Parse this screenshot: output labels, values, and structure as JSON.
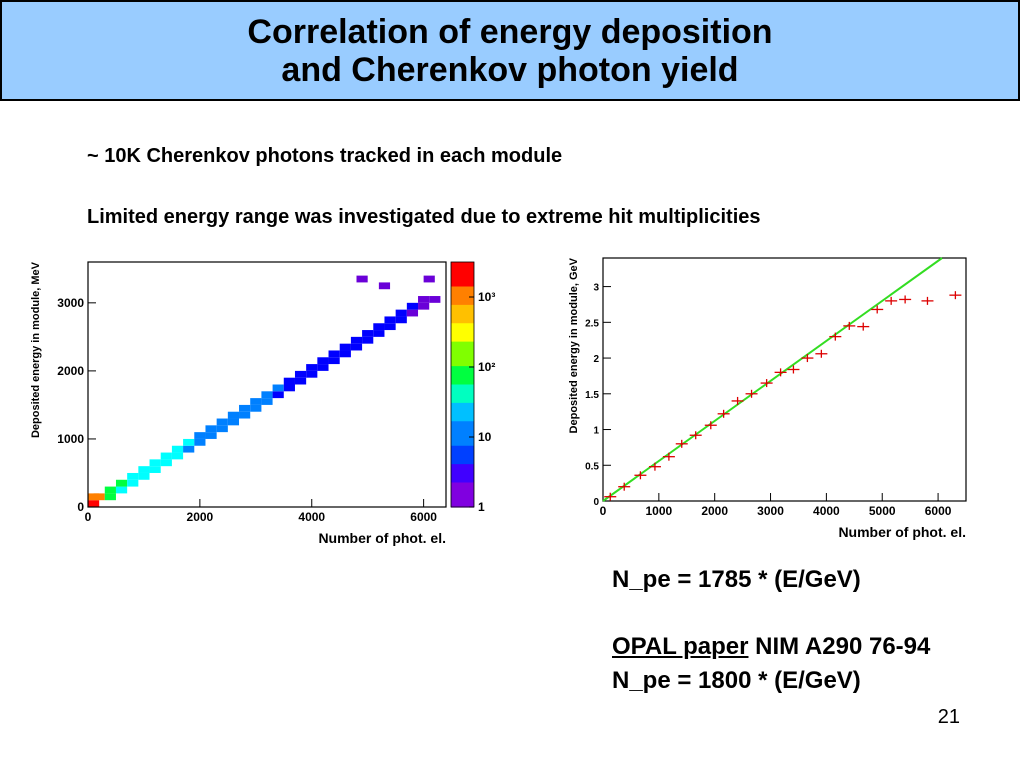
{
  "slide": {
    "title_line1": "Correlation of energy deposition",
    "title_line2": "and Cherenkov photon yield",
    "bullet1": "~ 10K Cherenkov photons tracked in each module",
    "bullet2": "Limited energy range was investigated due to extreme hit multiplicities",
    "formula1": "N_pe = 1785 * (E/GeV)",
    "ref_link": "OPAL paper",
    "ref_rest": "NIM A290 76-94",
    "formula2": "N_pe = 1800 * (E/GeV)",
    "page_number": "21"
  },
  "chart_data": [
    {
      "type": "heatmap",
      "xlabel": "Number of phot. el.",
      "ylabel": "Deposited energy in module, MeV",
      "xlim": [
        0,
        6400
      ],
      "ylim": [
        0,
        3600
      ],
      "x_ticks": [
        "0",
        "2000",
        "4000",
        "6000"
      ],
      "y_ticks": [
        "0",
        "1000",
        "2000",
        "3000"
      ],
      "z_scale": "log",
      "z_ticks": [
        "1",
        "10",
        "10²",
        "10³"
      ],
      "bin_size": [
        200,
        100
      ],
      "points": [
        [
          0,
          0,
          800
        ],
        [
          0,
          100,
          300
        ],
        [
          100,
          100,
          600
        ],
        [
          300,
          100,
          50
        ],
        [
          300,
          200,
          40
        ],
        [
          500,
          200,
          30
        ],
        [
          500,
          300,
          35
        ],
        [
          700,
          300,
          25
        ],
        [
          700,
          400,
          30
        ],
        [
          900,
          400,
          20
        ],
        [
          900,
          500,
          25
        ],
        [
          1100,
          500,
          15
        ],
        [
          1100,
          600,
          20
        ],
        [
          1300,
          600,
          15
        ],
        [
          1300,
          700,
          18
        ],
        [
          1500,
          700,
          12
        ],
        [
          1500,
          800,
          15
        ],
        [
          1700,
          800,
          10
        ],
        [
          1700,
          900,
          12
        ],
        [
          1900,
          900,
          8
        ],
        [
          1900,
          1000,
          10
        ],
        [
          2100,
          1000,
          8
        ],
        [
          2100,
          1100,
          9
        ],
        [
          2300,
          1100,
          7
        ],
        [
          2300,
          1200,
          8
        ],
        [
          2500,
          1200,
          6
        ],
        [
          2500,
          1300,
          7
        ],
        [
          2700,
          1300,
          6
        ],
        [
          2700,
          1400,
          6
        ],
        [
          2900,
          1400,
          5
        ],
        [
          2900,
          1500,
          6
        ],
        [
          3100,
          1500,
          5
        ],
        [
          3100,
          1600,
          5
        ],
        [
          3300,
          1600,
          4
        ],
        [
          3300,
          1700,
          5
        ],
        [
          3500,
          1700,
          4
        ],
        [
          3500,
          1800,
          4
        ],
        [
          3700,
          1800,
          3
        ],
        [
          3700,
          1900,
          4
        ],
        [
          3900,
          1900,
          3
        ],
        [
          3900,
          2000,
          3
        ],
        [
          4100,
          2000,
          3
        ],
        [
          4100,
          2100,
          3
        ],
        [
          4300,
          2100,
          2
        ],
        [
          4300,
          2200,
          3
        ],
        [
          4500,
          2200,
          2
        ],
        [
          4500,
          2300,
          2
        ],
        [
          4700,
          2300,
          2
        ],
        [
          4700,
          2400,
          2
        ],
        [
          4900,
          2400,
          2
        ],
        [
          4900,
          2500,
          2
        ],
        [
          5100,
          2500,
          2
        ],
        [
          5100,
          2600,
          2
        ],
        [
          5300,
          2600,
          2
        ],
        [
          5300,
          2700,
          2
        ],
        [
          5500,
          2700,
          2
        ],
        [
          5500,
          2800,
          2
        ],
        [
          5700,
          2800,
          1
        ],
        [
          5700,
          2900,
          2
        ],
        [
          5900,
          2900,
          1
        ],
        [
          5900,
          3000,
          1
        ],
        [
          6100,
          3000,
          1
        ],
        [
          5200,
          3200,
          1
        ],
        [
          4800,
          3300,
          1
        ],
        [
          6000,
          3300,
          1
        ]
      ]
    },
    {
      "type": "line",
      "xlabel": "Number of phot. el.",
      "ylabel": "Deposited energy in module, GeV",
      "xlim": [
        0,
        6500
      ],
      "ylim": [
        0,
        3.4
      ],
      "x_ticks": [
        "0",
        "1000",
        "2000",
        "3000",
        "4000",
        "5000",
        "6000"
      ],
      "y_ticks": [
        "0",
        "0.5",
        "1",
        "1.5",
        "2",
        "2.5",
        "3"
      ],
      "fit_line": {
        "slope_gev_per_pe": 0.00056,
        "color": "#33dd22"
      },
      "points_color": "#dd0000",
      "points": [
        [
          130,
          0.06
        ],
        [
          380,
          0.2
        ],
        [
          670,
          0.36
        ],
        [
          930,
          0.48
        ],
        [
          1180,
          0.62
        ],
        [
          1410,
          0.8
        ],
        [
          1660,
          0.92
        ],
        [
          1930,
          1.06
        ],
        [
          2160,
          1.22
        ],
        [
          2410,
          1.4
        ],
        [
          2660,
          1.5
        ],
        [
          2930,
          1.65
        ],
        [
          3180,
          1.8
        ],
        [
          3410,
          1.84
        ],
        [
          3660,
          2.0
        ],
        [
          3910,
          2.06
        ],
        [
          4160,
          2.3
        ],
        [
          4410,
          2.45
        ],
        [
          4660,
          2.44
        ],
        [
          4910,
          2.68
        ],
        [
          5160,
          2.8
        ],
        [
          5410,
          2.82
        ],
        [
          5810,
          2.8
        ],
        [
          6310,
          2.88
        ]
      ]
    }
  ]
}
